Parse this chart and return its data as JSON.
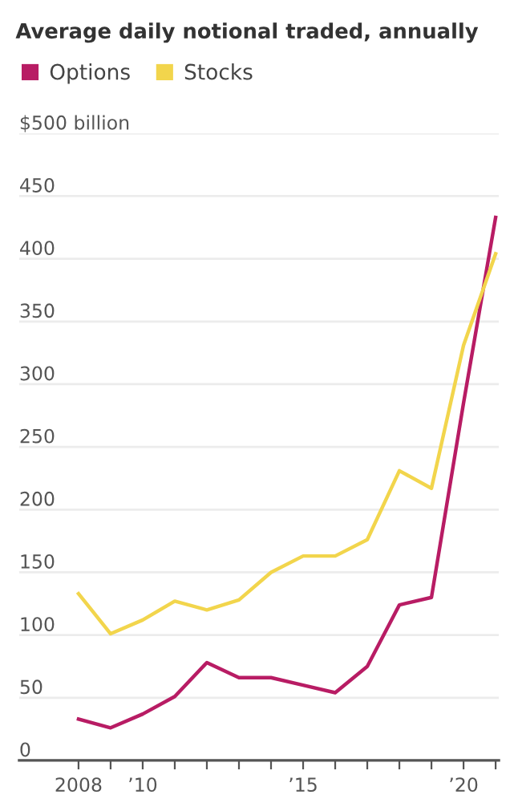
{
  "chart_data": {
    "type": "line",
    "title": "Average daily notional traded, annually",
    "x": [
      2008,
      2009,
      2010,
      2011,
      2012,
      2013,
      2014,
      2015,
      2016,
      2017,
      2018,
      2019,
      2020,
      2021
    ],
    "series": [
      {
        "name": "Options",
        "color": "#b81c64",
        "values": [
          33,
          26,
          37,
          51,
          78,
          66,
          66,
          60,
          54,
          75,
          124,
          130,
          285,
          433
        ]
      },
      {
        "name": "Stocks",
        "color": "#f2d54c",
        "values": [
          133,
          101,
          112,
          127,
          120,
          128,
          150,
          163,
          163,
          176,
          231,
          217,
          331,
          404
        ]
      }
    ],
    "xlim": [
      2006.15,
      2021.1
    ],
    "xticks": [
      {
        "value": 2008,
        "label": "2008"
      },
      {
        "value": 2009,
        "label": null
      },
      {
        "value": 2010,
        "label": "’10"
      },
      {
        "value": 2011,
        "label": null
      },
      {
        "value": 2012,
        "label": null
      },
      {
        "value": 2013,
        "label": null
      },
      {
        "value": 2014,
        "label": null
      },
      {
        "value": 2015,
        "label": "’15"
      },
      {
        "value": 2016,
        "label": null
      },
      {
        "value": 2017,
        "label": null
      },
      {
        "value": 2018,
        "label": null
      },
      {
        "value": 2019,
        "label": null
      },
      {
        "value": 2020,
        "label": "’20"
      },
      {
        "value": 2021,
        "label": null
      }
    ],
    "ylim": [
      0,
      500
    ],
    "yticks": [
      0,
      50,
      100,
      150,
      200,
      250,
      300,
      350,
      400,
      450,
      {
        "value": 500,
        "label": "$500 billion"
      }
    ],
    "grid": "y",
    "legend": "top left",
    "marker": "none",
    "line_style": "solid"
  }
}
